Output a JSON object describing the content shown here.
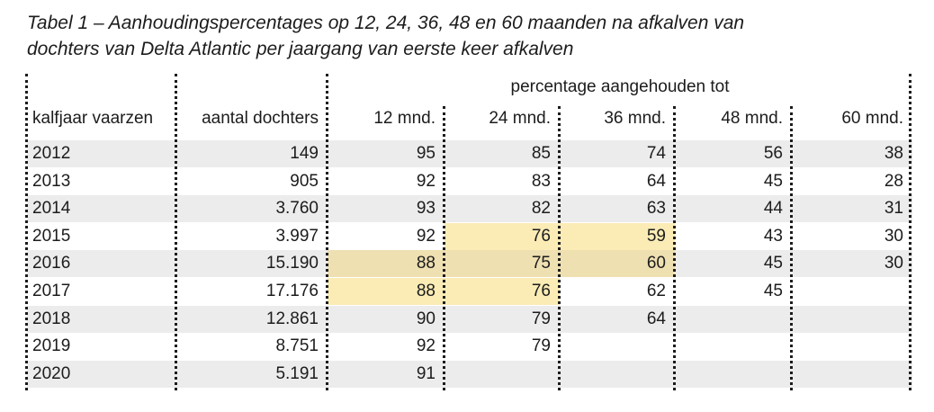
{
  "caption": {
    "line1": "Tabel 1 – Aanhoudingspercentages op 12, 24, 36, 48 en 60 maanden na afkalven van",
    "line2": "dochters van Delta Atlantic per jaargang van eerste keer afkalven"
  },
  "table": {
    "group_header": "percentage aangehouden tot",
    "columns": [
      "kalfjaar vaarzen",
      "aantal dochters",
      "12 mnd.",
      "24 mnd.",
      "36 mnd.",
      "48 mnd.",
      "60 mnd."
    ],
    "rows": [
      [
        "2012",
        "149",
        "95",
        "85",
        "74",
        "56",
        "38"
      ],
      [
        "2013",
        "905",
        "92",
        "83",
        "64",
        "45",
        "28"
      ],
      [
        "2014",
        "3.760",
        "93",
        "82",
        "63",
        "44",
        "31"
      ],
      [
        "2015",
        "3.997",
        "92",
        "76",
        "59",
        "43",
        "30"
      ],
      [
        "2016",
        "15.190",
        "88",
        "75",
        "60",
        "45",
        "30"
      ],
      [
        "2017",
        "17.176",
        "88",
        "76",
        "62",
        "45",
        ""
      ],
      [
        "2018",
        "12.861",
        "90",
        "79",
        "64",
        "",
        ""
      ],
      [
        "2019",
        "8.751",
        "92",
        "79",
        "",
        "",
        ""
      ],
      [
        "2020",
        "5.191",
        "91",
        "",
        "",
        "",
        ""
      ]
    ],
    "highlight_color": "#fbecb6",
    "highlighted_cells": [
      [
        3,
        3
      ],
      [
        3,
        4
      ],
      [
        4,
        2
      ],
      [
        4,
        3
      ],
      [
        4,
        4
      ],
      [
        5,
        2
      ],
      [
        5,
        3
      ]
    ]
  }
}
